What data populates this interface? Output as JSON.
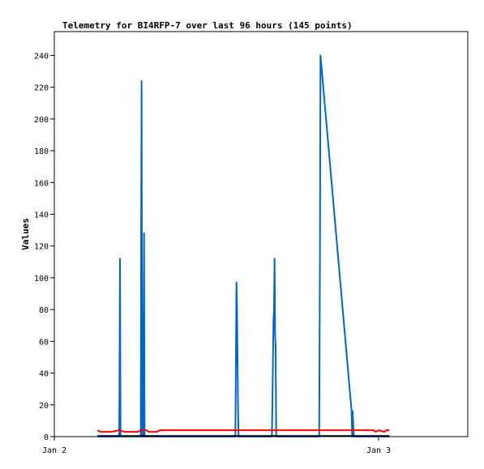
{
  "chart_data": {
    "type": "line",
    "title": "Telemetry for BI4RFP-7 over last 96 hours (145 points)",
    "ylabel": "Values",
    "xlabel": "",
    "ylim": [
      0,
      255
    ],
    "xlim_hours": [
      0,
      30.6
    ],
    "yticks": [
      0,
      20,
      40,
      60,
      80,
      100,
      120,
      140,
      160,
      180,
      200,
      220,
      240
    ],
    "xticks": [
      {
        "label": "Jan 2",
        "hours": 0
      },
      {
        "label": "Jan 3",
        "hours": 24
      }
    ],
    "grid": false,
    "legend": "none",
    "series": [
      {
        "color": "#0066cc",
        "points": [
          [
            3.2,
            0
          ],
          [
            4.8,
            0
          ],
          [
            4.82,
            25
          ],
          [
            4.86,
            112
          ],
          [
            4.9,
            0
          ],
          [
            6.4,
            0
          ],
          [
            6.42,
            112
          ],
          [
            6.46,
            224
          ],
          [
            6.5,
            0
          ],
          [
            6.56,
            0
          ],
          [
            6.6,
            64
          ],
          [
            6.64,
            128
          ],
          [
            6.68,
            0
          ],
          [
            13.4,
            0
          ],
          [
            13.44,
            48
          ],
          [
            13.48,
            97
          ],
          [
            13.52,
            80
          ],
          [
            13.56,
            48
          ],
          [
            13.6,
            16
          ],
          [
            13.64,
            0
          ],
          [
            16.1,
            0
          ],
          [
            16.14,
            20
          ],
          [
            16.18,
            48
          ],
          [
            16.22,
            73
          ],
          [
            16.26,
            80
          ],
          [
            16.3,
            112
          ],
          [
            16.34,
            64
          ],
          [
            16.38,
            56
          ],
          [
            16.42,
            0
          ],
          [
            19.6,
            0
          ],
          [
            19.62,
            32
          ],
          [
            19.66,
            120
          ],
          [
            19.7,
            240
          ],
          [
            19.74,
            236
          ],
          [
            22.0,
            16
          ],
          [
            22.04,
            0
          ],
          [
            22.08,
            16
          ],
          [
            22.12,
            8
          ],
          [
            22.16,
            0
          ],
          [
            24.8,
            0
          ]
        ]
      },
      {
        "color": "#ff0000",
        "points": [
          [
            3.2,
            4
          ],
          [
            3.4,
            3
          ],
          [
            4.2,
            3
          ],
          [
            4.8,
            4
          ],
          [
            5.2,
            3
          ],
          [
            6.2,
            3
          ],
          [
            6.4,
            4
          ],
          [
            6.8,
            4
          ],
          [
            7.0,
            3
          ],
          [
            7.6,
            3
          ],
          [
            7.8,
            4
          ],
          [
            12.0,
            4
          ],
          [
            16.0,
            4
          ],
          [
            20.0,
            4
          ],
          [
            22.5,
            4
          ],
          [
            23.6,
            4
          ],
          [
            23.8,
            3
          ],
          [
            24.0,
            4
          ],
          [
            24.4,
            3
          ],
          [
            24.6,
            4
          ],
          [
            24.8,
            4
          ]
        ]
      },
      {
        "color": "#000000",
        "points": [
          [
            3.2,
            0.4
          ],
          [
            24.8,
            0.4
          ]
        ]
      }
    ]
  }
}
